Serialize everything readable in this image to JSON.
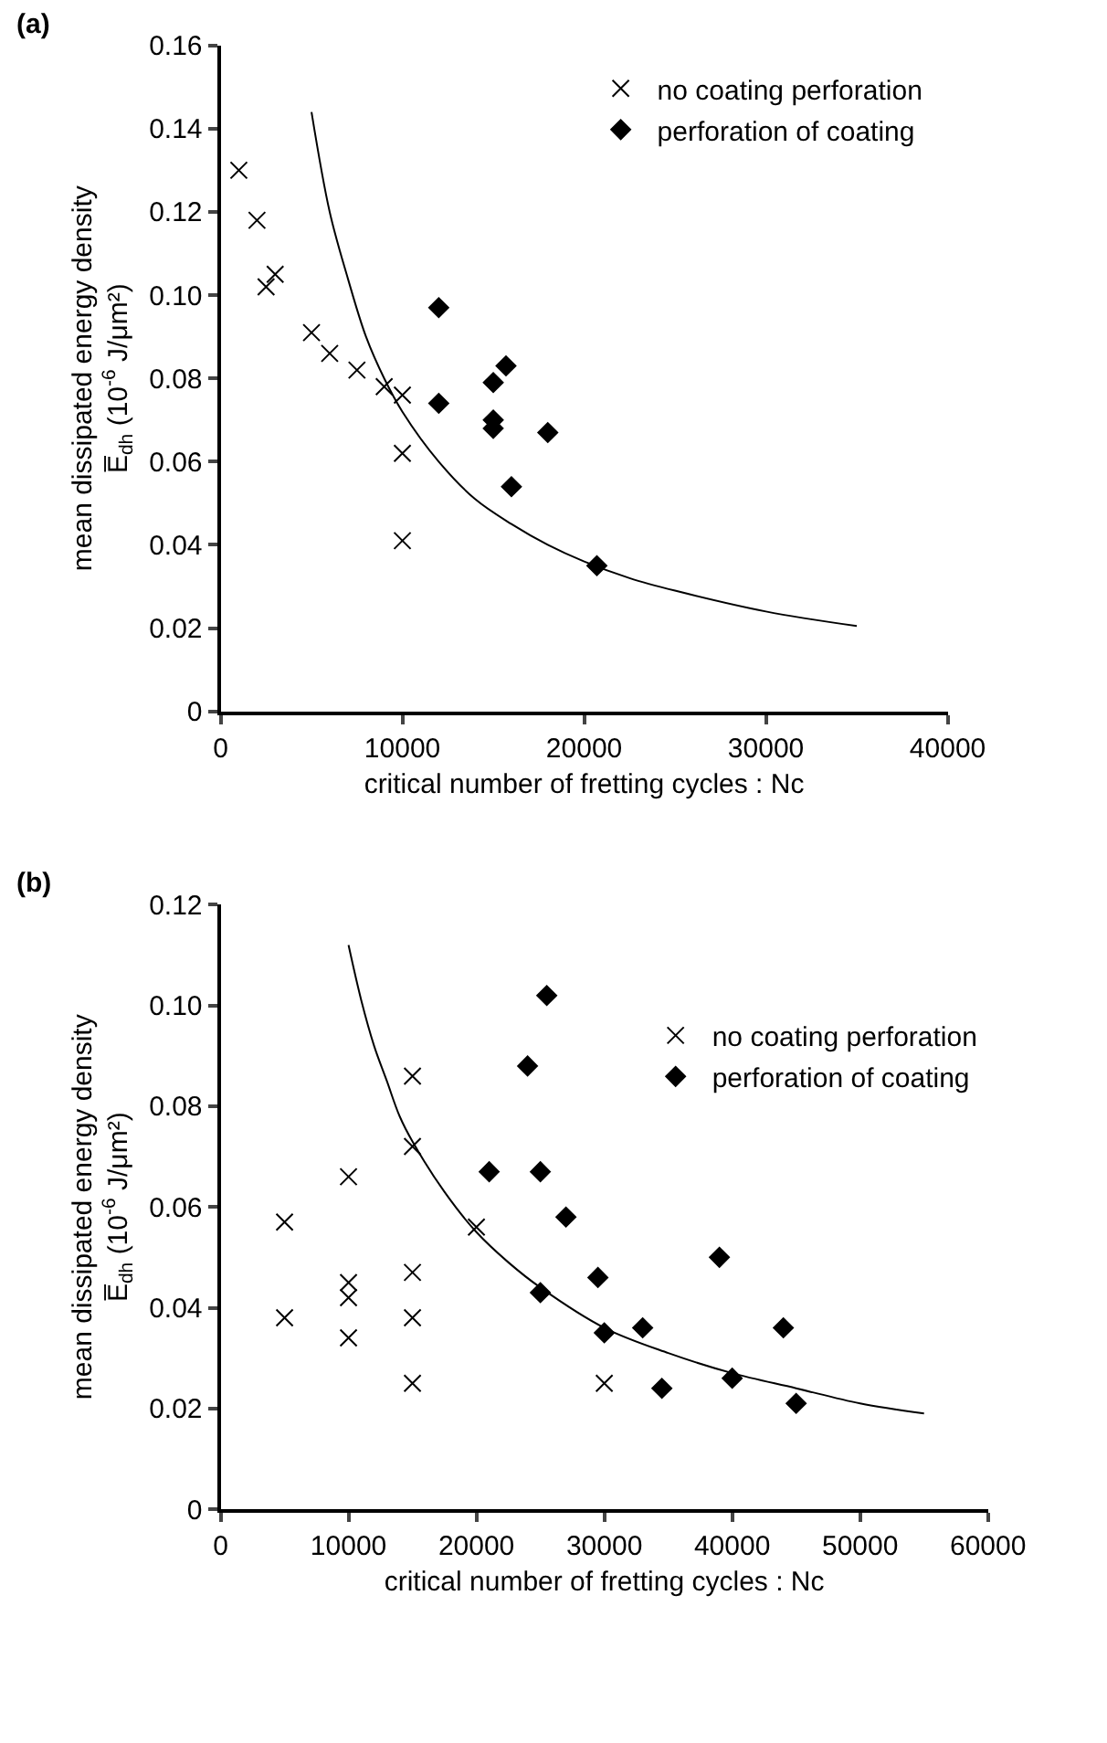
{
  "chart_data": [
    {
      "type": "scatter",
      "annotations": [
        "(a)"
      ],
      "xlabel": "critical number of fretting cycles : Nc",
      "ylabel": "mean dissipated energy density\nE̅$_{dh}$ (10$^{-6}$ J/μm²)",
      "xlim": [
        0,
        40000
      ],
      "xticks": [
        0,
        10000,
        20000,
        30000,
        40000
      ],
      "ylim": [
        0,
        0.16
      ],
      "yticks": [
        0,
        0.02,
        0.04,
        0.06,
        0.08,
        {
          "value": 0.1,
          "label": "0.10"
        },
        0.12,
        0.14,
        0.16
      ],
      "grid": false,
      "legend": "top right",
      "series": [
        {
          "name": "no coating perforation",
          "marker": "cross",
          "color": "#000000",
          "x": [
            1000,
            2000,
            2500,
            3000,
            5000,
            6000,
            7500,
            9000,
            10000,
            10000,
            10000
          ],
          "values": [
            0.13,
            0.118,
            0.102,
            0.105,
            0.091,
            0.086,
            0.082,
            0.078,
            0.076,
            0.062,
            0.041
          ]
        },
        {
          "name": "perforation of coating",
          "marker": "diamond",
          "color": "#000000",
          "x": [
            12000,
            12000,
            15000,
            15000,
            15000,
            15700,
            16000,
            18000,
            20700
          ],
          "values": [
            0.097,
            0.074,
            0.079,
            0.07,
            0.068,
            0.083,
            0.054,
            0.067,
            0.035
          ]
        },
        {
          "type": "line",
          "marker": "none",
          "line_style": "solid",
          "color": "#000000",
          "x": [
            5000,
            6000,
            7000,
            8000,
            9000,
            10000,
            12000,
            14000,
            16000,
            18000,
            20000,
            22500,
            25000,
            30000,
            35000
          ],
          "values": [
            0.144,
            0.12,
            0.104,
            0.09,
            0.08,
            0.072,
            0.06,
            0.051,
            0.045,
            0.04,
            0.036,
            0.032,
            0.029,
            0.024,
            0.0205
          ]
        }
      ]
    },
    {
      "type": "scatter",
      "annotations": [
        "(b)"
      ],
      "xlabel": "critical number of fretting cycles : Nc",
      "ylabel": "mean dissipated energy density\nE̅$_{dh}$ (10$^{-6}$ J/μm²)",
      "xlim": [
        0,
        60000
      ],
      "xticks": [
        0,
        10000,
        20000,
        30000,
        40000,
        50000,
        60000
      ],
      "ylim": [
        0,
        0.12
      ],
      "yticks": [
        0,
        0.02,
        0.04,
        0.06,
        0.08,
        {
          "value": 0.1,
          "label": "0.10"
        },
        0.12
      ],
      "grid": false,
      "legend": "right",
      "series": [
        {
          "name": "no coating perforation",
          "marker": "cross",
          "color": "#000000",
          "x": [
            5000,
            5000,
            10000,
            10000,
            10000,
            10000,
            15000,
            15000,
            15000,
            15000,
            15000,
            20000,
            30000
          ],
          "values": [
            0.057,
            0.038,
            0.066,
            0.045,
            0.042,
            0.034,
            0.086,
            0.072,
            0.047,
            0.038,
            0.025,
            0.056,
            0.025
          ]
        },
        {
          "name": "perforation of coating",
          "marker": "diamond",
          "color": "#000000",
          "x": [
            21000,
            24000,
            25000,
            25500,
            27000,
            25000,
            29500,
            30000,
            33000,
            34500,
            39000,
            40000,
            44000,
            45000
          ],
          "values": [
            0.067,
            0.088,
            0.067,
            0.102,
            0.058,
            0.043,
            0.046,
            0.035,
            0.036,
            0.024,
            0.05,
            0.026,
            0.036,
            0.021
          ]
        },
        {
          "type": "line",
          "marker": "none",
          "line_style": "solid",
          "color": "#000000",
          "x": [
            10000,
            11000,
            12000,
            13000,
            14000,
            15000,
            17500,
            20000,
            22500,
            25000,
            30000,
            35000,
            40000,
            45000,
            50000,
            55000
          ],
          "values": [
            0.112,
            0.101,
            0.092,
            0.085,
            0.078,
            0.073,
            0.063,
            0.055,
            0.049,
            0.044,
            0.036,
            0.031,
            0.027,
            0.024,
            0.021,
            0.019
          ]
        }
      ]
    }
  ]
}
